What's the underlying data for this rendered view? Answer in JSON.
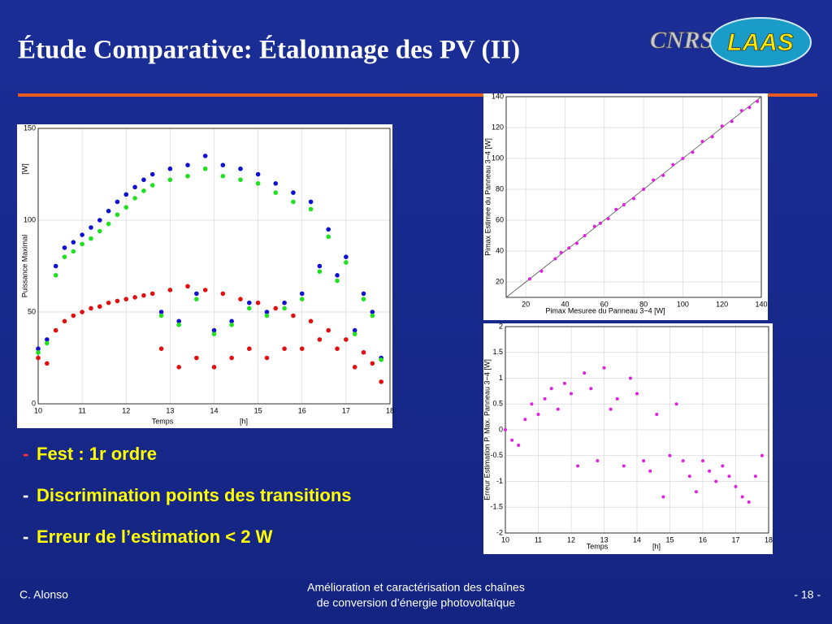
{
  "title": "Étude Comparative: Étalonnage des PV (II)",
  "logo": {
    "left": "CNRS",
    "right": "LAAS"
  },
  "bullet_marker": "-",
  "bullets": [
    "Fest : 1r ordre",
    "Discrimination points des transitions",
    "Erreur de l’estimation < 2 W"
  ],
  "footer": {
    "left": "C. Alonso",
    "center": [
      "Amélioration et caractérisation des chaînes",
      "de conversion d’énergie photovoltaïque"
    ],
    "right": "- 18 -"
  },
  "chart_data": [
    {
      "type": "scatter",
      "x_label": "Temps",
      "x_unit": "[h]",
      "y_label": "Puissance Maximal",
      "y_unit": "[W]",
      "xlim": [
        10,
        18
      ],
      "xticks": [
        10,
        11,
        12,
        13,
        14,
        15,
        16,
        17,
        18
      ],
      "ylim": [
        0,
        150
      ],
      "yticks": [
        0,
        50,
        100,
        150
      ],
      "grid": true,
      "x": [
        10.0,
        10.2,
        10.4,
        10.6,
        10.8,
        11.0,
        11.2,
        11.4,
        11.6,
        11.8,
        12.0,
        12.2,
        12.4,
        12.6,
        12.8,
        13.0,
        13.2,
        13.4,
        13.6,
        13.8,
        14.0,
        14.2,
        14.4,
        14.6,
        14.8,
        15.0,
        15.2,
        15.4,
        15.6,
        15.8,
        16.0,
        16.2,
        16.4,
        16.6,
        16.8,
        17.0,
        17.2,
        17.4,
        17.6,
        17.8
      ],
      "series": [
        {
          "color": "#1010d0",
          "values": [
            30,
            35,
            75,
            85,
            88,
            92,
            96,
            100,
            105,
            110,
            114,
            118,
            122,
            125,
            50,
            128,
            45,
            130,
            60,
            135,
            40,
            130,
            45,
            128,
            55,
            125,
            50,
            120,
            55,
            115,
            60,
            110,
            75,
            95,
            70,
            80,
            40,
            60,
            50,
            25
          ]
        },
        {
          "color": "#20e020",
          "values": [
            28,
            33,
            70,
            80,
            83,
            87,
            90,
            94,
            98,
            103,
            107,
            112,
            116,
            119,
            48,
            122,
            43,
            124,
            57,
            128,
            38,
            124,
            43,
            122,
            52,
            120,
            48,
            115,
            52,
            110,
            57,
            106,
            72,
            91,
            67,
            77,
            38,
            57,
            48,
            24
          ]
        },
        {
          "color": "#e01010",
          "values": [
            25,
            22,
            40,
            45,
            48,
            50,
            52,
            53,
            55,
            56,
            57,
            58,
            59,
            60,
            30,
            62,
            20,
            64,
            25,
            62,
            20,
            60,
            25,
            57,
            30,
            55,
            25,
            52,
            30,
            48,
            30,
            45,
            35,
            40,
            30,
            35,
            20,
            28,
            22,
            12
          ]
        }
      ]
    },
    {
      "type": "scatter",
      "x_label": "Pimax Mesuree du Panneau 3−4   [W]",
      "y_label": "Pimax Estimee du Panneau 3−4   [W]",
      "xlim": [
        10,
        140
      ],
      "xticks": [
        20,
        40,
        60,
        80,
        100,
        120,
        140
      ],
      "ylim": [
        10,
        140
      ],
      "yticks": [
        20,
        40,
        60,
        80,
        100,
        120,
        140
      ],
      "grid": true,
      "x": [
        22,
        28,
        35,
        38,
        42,
        46,
        50,
        55,
        58,
        62,
        66,
        70,
        75,
        80,
        85,
        90,
        95,
        100,
        105,
        110,
        115,
        120,
        125,
        130,
        134,
        138
      ],
      "series": [
        {
          "color": "#e020e0",
          "values": [
            22,
            27,
            35,
            39,
            42,
            45,
            50,
            56,
            58,
            61,
            67,
            70,
            74,
            80,
            86,
            89,
            96,
            100,
            104,
            111,
            114,
            121,
            124,
            131,
            133,
            137
          ]
        }
      ]
    },
    {
      "type": "scatter",
      "x_label": "Temps",
      "x_unit": "[h]",
      "y_label": "Erreur Estimation P. Max. Panneau 3−4 [W]",
      "xlim": [
        10,
        18
      ],
      "xticks": [
        10,
        11,
        12,
        13,
        14,
        15,
        16,
        17,
        18
      ],
      "ylim": [
        -2,
        2
      ],
      "yticks": [
        -2,
        -1.5,
        -1,
        -0.5,
        0,
        0.5,
        1,
        1.5,
        2
      ],
      "grid": true,
      "x": [
        10.0,
        10.2,
        10.4,
        10.6,
        10.8,
        11.0,
        11.2,
        11.4,
        11.6,
        11.8,
        12.0,
        12.2,
        12.4,
        12.6,
        12.8,
        13.0,
        13.2,
        13.4,
        13.6,
        13.8,
        14.0,
        14.2,
        14.4,
        14.6,
        14.8,
        15.0,
        15.2,
        15.4,
        15.6,
        15.8,
        16.0,
        16.2,
        16.4,
        16.6,
        16.8,
        17.0,
        17.2,
        17.4,
        17.6,
        17.8
      ],
      "series": [
        {
          "color": "#e020e0",
          "values": [
            0,
            -0.2,
            -0.3,
            0.2,
            0.5,
            0.3,
            0.6,
            0.8,
            0.4,
            0.9,
            0.7,
            -0.7,
            1.1,
            0.8,
            -0.6,
            1.2,
            0.4,
            0.6,
            -0.7,
            1.0,
            0.7,
            -0.6,
            -0.8,
            0.3,
            -1.3,
            -0.5,
            0.5,
            -0.6,
            -0.9,
            -1.2,
            -0.6,
            -0.8,
            -1.0,
            -0.7,
            -0.9,
            -1.1,
            -1.3,
            -1.4,
            -0.9,
            -0.5
          ]
        }
      ]
    }
  ]
}
